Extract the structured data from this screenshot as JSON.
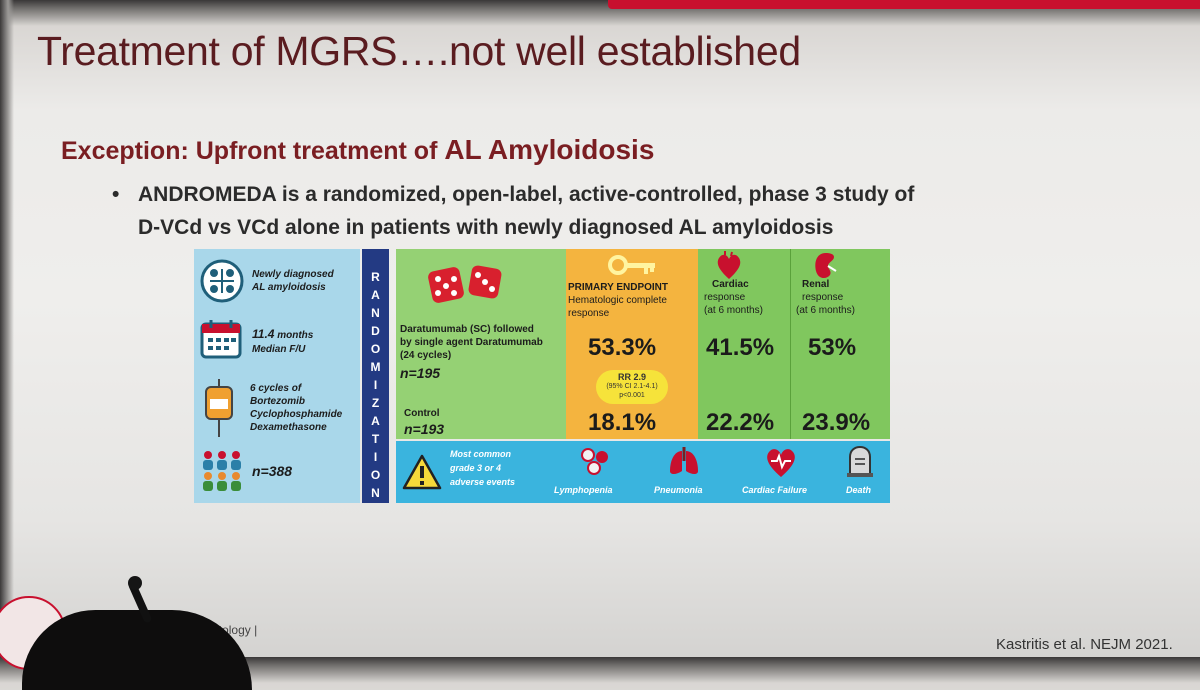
{
  "slide": {
    "title": "Treatment of MGRS….not well established",
    "subtitle_prefix": "Exception:  Upfront treatment of ",
    "subtitle_emphasis": "AL Amyloidosis",
    "bullet_symbol": "•",
    "bullet_line1": "ANDROMEDA is a randomized, open-label, active-controlled, phase 3 study of",
    "bullet_line2": "D-VCd vs VCd alone in patients with newly diagnosed AL amyloidosis"
  },
  "infographic": {
    "left": {
      "diagnosis_line1": "Newly diagnosed",
      "diagnosis_line2": "AL amyloidosis",
      "followup_value": "11.4",
      "followup_unit": " months",
      "followup_label": "Median F/U",
      "regimen": [
        "6 cycles of",
        "Bortezomib",
        "Cyclophosphamide",
        "Dexamethasone"
      ],
      "total_n": "n=388"
    },
    "randomization_letters": [
      "R",
      "A",
      "N",
      "D",
      "O",
      "M",
      "I",
      "Z",
      "A",
      "T",
      "I",
      "O",
      "N"
    ],
    "arms": {
      "treatment_line1": "Daratumumab (SC) followed",
      "treatment_line2": "by single agent Daratumumab",
      "treatment_line3": "(24 cycles)",
      "treatment_n": "n=195",
      "control_label": "Control",
      "control_n": "n=193"
    },
    "primary": {
      "header1": "PRIMARY ENDPOINT",
      "header2": "Hematologic complete",
      "header3": "response",
      "treatment_value": "53.3%",
      "control_value": "18.1%",
      "rr_main": "RR 2.9",
      "rr_ci": "(95% CI 2.1-4.1)",
      "rr_p": "p<0.001"
    },
    "cardiac": {
      "header1": "Cardiac",
      "header2": "response",
      "header3": "(at 6 months)",
      "treatment_value": "41.5%",
      "control_value": "22.2%"
    },
    "renal": {
      "header1": "Renal",
      "header2": "response",
      "header3": "(at 6 months)",
      "treatment_value": "53%",
      "control_value": "23.9%"
    },
    "adverse": {
      "line1": "Most common",
      "line2": "grade 3 or 4",
      "line3": "adverse events",
      "items": [
        "Lymphopenia",
        "Pneumonia",
        "Cardiac Failure",
        "Death"
      ]
    }
  },
  "footer": {
    "society_text": "can Society of Hematology |",
    "citation": "Kastritis et al. NEJM 2021."
  },
  "colors": {
    "title": "#5a1c20",
    "subtitle": "#7a1e22",
    "left_panel": "#a9d7ea",
    "randomization_bar": "#233a83",
    "arm_panel": "#95d174",
    "primary_panel": "#f4b43f",
    "response_panel": "#80c75e",
    "adverse_panel": "#3ab4de",
    "accent_red": "#c8102e"
  }
}
